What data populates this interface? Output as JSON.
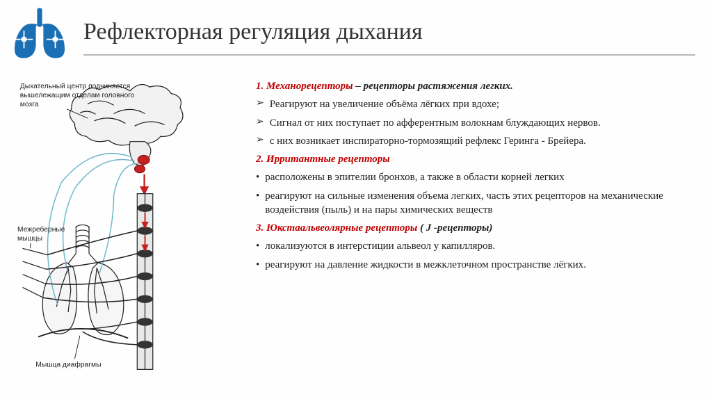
{
  "header": {
    "title": "Рефлекторная регуляция дыхания",
    "icon_color": "#1b6fb5",
    "underline_color": "#b8b8b8"
  },
  "diagram": {
    "label_brain": "Дыхательный центр подчиняется вышележащим отделам головного мозга",
    "label_intercostal": "Межреберные мышцы",
    "label_diaphragm": "Мышца диафрагмы",
    "colors": {
      "outline": "#222222",
      "nerve_blue": "#6fb8cc",
      "arrow_red": "#c42020",
      "spine_fill": "#e8e8e8",
      "bg": "#fefefe"
    }
  },
  "sections": [
    {
      "num": "1.",
      "head_red": "Механорецепторы",
      "head_after": " – рецепторы растяжения легких.",
      "bullets": [
        {
          "mark": "chev",
          "text": "Реагируют на увеличение объёма лёгких при вдохе;"
        },
        {
          "mark": "chev",
          "text": "Сигнал от них поступает по афферентным волокнам блуждающих нервов."
        },
        {
          "mark": "chev",
          "text": "с них возникает инспираторно-тормозящий рефлекс Геринга - Брейера."
        }
      ]
    },
    {
      "num": "2.",
      "head_red": "Ирритантные рецепторы",
      "head_after": "",
      "bullets": [
        {
          "mark": "dot",
          "text": "расположены в эпителии бронхов, а также в области корней легких"
        },
        {
          "mark": "dot",
          "text": "реагируют на сильные изменения объема легких, часть этих рецепторов на механические воздействия (пыль) и на пары химических веществ"
        }
      ]
    },
    {
      "num": "3.",
      "head_red": "Юкстаальвеолярные рецепторы",
      "head_after": " ( J -рецепторы)",
      "bullets": [
        {
          "mark": "dot",
          "text": "локализуются в интерстиции альвеол у капилляров."
        },
        {
          "mark": "dot",
          "text": "реагируют на давление жидкости в межклеточном пространстве лёгких."
        }
      ]
    }
  ],
  "style": {
    "red": "#c00000",
    "body_text": "#222222",
    "chev_glyph": "➢",
    "dot_glyph": "•"
  }
}
